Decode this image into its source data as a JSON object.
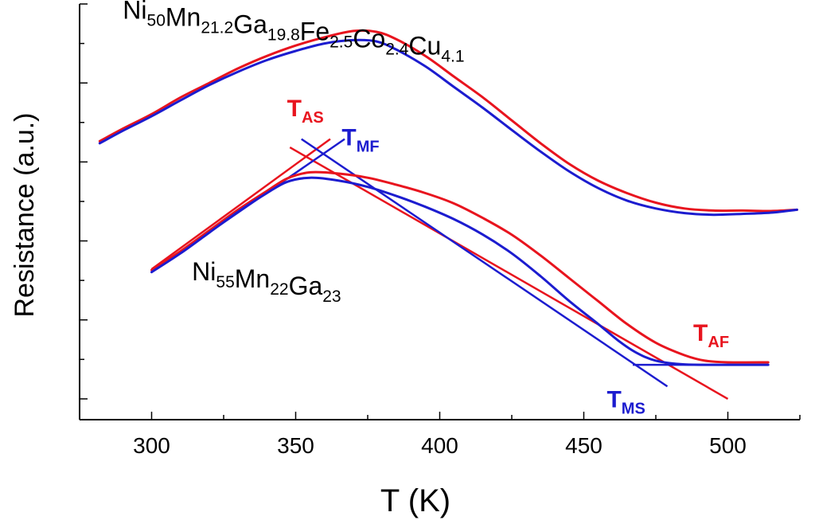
{
  "chart_data": {
    "type": "line",
    "xlabel": "T (K)",
    "ylabel": "Resistance (a.u.)",
    "xlim": [
      275,
      525
    ],
    "ylim": [
      0,
      10
    ],
    "x_ticks": [
      300,
      350,
      400,
      450,
      500
    ],
    "y_ticks_labeled": false,
    "grid": false,
    "colors": {
      "heating": "#e8141e",
      "cooling": "#1c1ccf",
      "text": "#000000"
    },
    "series": [
      {
        "sample": "upper",
        "color": "#e8141e",
        "points": [
          [
            282,
            6.7
          ],
          [
            290,
            7.0
          ],
          [
            300,
            7.35
          ],
          [
            310,
            7.75
          ],
          [
            320,
            8.1
          ],
          [
            330,
            8.45
          ],
          [
            340,
            8.75
          ],
          [
            350,
            9.0
          ],
          [
            360,
            9.2
          ],
          [
            370,
            9.35
          ],
          [
            378,
            9.33
          ],
          [
            385,
            9.15
          ],
          [
            395,
            8.75
          ],
          [
            405,
            8.25
          ],
          [
            415,
            7.75
          ],
          [
            425,
            7.2
          ],
          [
            435,
            6.65
          ],
          [
            445,
            6.15
          ],
          [
            455,
            5.75
          ],
          [
            465,
            5.45
          ],
          [
            475,
            5.22
          ],
          [
            485,
            5.08
          ],
          [
            495,
            5.03
          ],
          [
            505,
            5.03
          ],
          [
            515,
            5.02
          ],
          [
            524,
            5.05
          ]
        ]
      },
      {
        "sample": "upper",
        "color": "#1c1ccf",
        "points": [
          [
            282,
            6.65
          ],
          [
            290,
            6.95
          ],
          [
            300,
            7.3
          ],
          [
            310,
            7.68
          ],
          [
            320,
            8.05
          ],
          [
            330,
            8.37
          ],
          [
            340,
            8.65
          ],
          [
            350,
            8.87
          ],
          [
            360,
            9.05
          ],
          [
            370,
            9.13
          ],
          [
            378,
            9.1
          ],
          [
            385,
            8.9
          ],
          [
            395,
            8.5
          ],
          [
            405,
            8.0
          ],
          [
            415,
            7.5
          ],
          [
            425,
            6.97
          ],
          [
            435,
            6.45
          ],
          [
            445,
            5.97
          ],
          [
            455,
            5.57
          ],
          [
            465,
            5.27
          ],
          [
            475,
            5.08
          ],
          [
            485,
            4.97
          ],
          [
            495,
            4.93
          ],
          [
            505,
            4.95
          ],
          [
            515,
            4.98
          ],
          [
            524,
            5.05
          ]
        ]
      },
      {
        "sample": "lower",
        "color": "#e8141e",
        "points": [
          [
            300,
            3.6
          ],
          [
            310,
            4.05
          ],
          [
            320,
            4.55
          ],
          [
            330,
            5.05
          ],
          [
            340,
            5.5
          ],
          [
            347,
            5.8
          ],
          [
            355,
            5.95
          ],
          [
            365,
            5.92
          ],
          [
            375,
            5.82
          ],
          [
            385,
            5.65
          ],
          [
            395,
            5.45
          ],
          [
            405,
            5.2
          ],
          [
            415,
            4.85
          ],
          [
            425,
            4.45
          ],
          [
            435,
            3.95
          ],
          [
            445,
            3.4
          ],
          [
            455,
            2.85
          ],
          [
            465,
            2.3
          ],
          [
            475,
            1.85
          ],
          [
            485,
            1.55
          ],
          [
            492,
            1.42
          ],
          [
            500,
            1.38
          ],
          [
            514,
            1.38
          ]
        ]
      },
      {
        "sample": "lower",
        "color": "#1c1ccf",
        "points": [
          [
            300,
            3.55
          ],
          [
            310,
            4.0
          ],
          [
            320,
            4.5
          ],
          [
            330,
            5.0
          ],
          [
            340,
            5.45
          ],
          [
            347,
            5.72
          ],
          [
            355,
            5.82
          ],
          [
            365,
            5.75
          ],
          [
            375,
            5.6
          ],
          [
            385,
            5.38
          ],
          [
            395,
            5.12
          ],
          [
            405,
            4.82
          ],
          [
            415,
            4.45
          ],
          [
            425,
            4.0
          ],
          [
            435,
            3.45
          ],
          [
            445,
            2.85
          ],
          [
            455,
            2.3
          ],
          [
            462,
            1.9
          ],
          [
            468,
            1.62
          ],
          [
            475,
            1.42
          ],
          [
            485,
            1.33
          ],
          [
            500,
            1.32
          ],
          [
            514,
            1.32
          ]
        ]
      }
    ],
    "tangent_lines": [
      {
        "color": "#e8141e",
        "points": [
          [
            348,
            6.55
          ],
          [
            500,
            0.5
          ]
        ]
      },
      {
        "color": "#e8141e",
        "points": [
          [
            300,
            3.62
          ],
          [
            362,
            6.75
          ]
        ]
      },
      {
        "color": "#1c1ccf",
        "points": [
          [
            352,
            6.75
          ],
          [
            479,
            0.8
          ]
        ]
      },
      {
        "color": "#1c1ccf",
        "points": [
          [
            300,
            3.55
          ],
          [
            367,
            6.75
          ]
        ]
      },
      {
        "color": "#1c1ccf",
        "points": [
          [
            467,
            1.32
          ],
          [
            514,
            1.32
          ]
        ]
      }
    ],
    "annotations": [
      {
        "main": "T",
        "sub": "AS",
        "color": "#e8141e",
        "x": 347,
        "y": 7.3
      },
      {
        "main": "T",
        "sub": "MF",
        "color": "#1c1ccf",
        "x": 366,
        "y": 6.6
      },
      {
        "main": "T",
        "sub": "AF",
        "color": "#e8141e",
        "x": 488,
        "y": 1.9
      },
      {
        "main": "T",
        "sub": "MS",
        "color": "#1c1ccf",
        "x": 458,
        "y": 0.3
      }
    ],
    "compositions": [
      {
        "x": 290,
        "y": 9.65,
        "parts": [
          {
            "t": "Ni",
            "sub": "50"
          },
          {
            "t": "Mn",
            "sub": "21.2"
          },
          {
            "t": "Ga",
            "sub": "19.8"
          },
          {
            "t": "Fe",
            "sub": "2.5"
          },
          {
            "t": "Co",
            "sub": "2.4"
          },
          {
            "t": "Cu",
            "sub": "4.1"
          }
        ]
      },
      {
        "x": 314,
        "y": 3.35,
        "parts": [
          {
            "t": "Ni",
            "sub": "55"
          },
          {
            "t": "Mn",
            "sub": "22"
          },
          {
            "t": "Ga",
            "sub": "23"
          }
        ]
      }
    ]
  }
}
